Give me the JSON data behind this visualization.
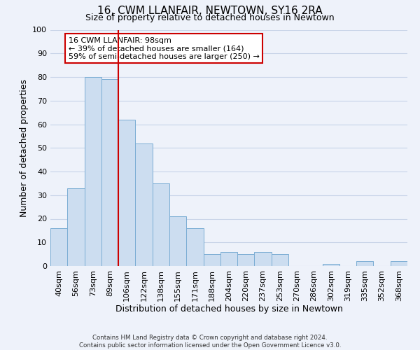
{
  "title": "16, CWM LLANFAIR, NEWTOWN, SY16 2RA",
  "subtitle": "Size of property relative to detached houses in Newtown",
  "xlabel": "Distribution of detached houses by size in Newtown",
  "ylabel": "Number of detached properties",
  "categories": [
    "40sqm",
    "56sqm",
    "73sqm",
    "89sqm",
    "106sqm",
    "122sqm",
    "138sqm",
    "155sqm",
    "171sqm",
    "188sqm",
    "204sqm",
    "220sqm",
    "237sqm",
    "253sqm",
    "270sqm",
    "286sqm",
    "302sqm",
    "319sqm",
    "335sqm",
    "352sqm",
    "368sqm"
  ],
  "values": [
    16,
    33,
    80,
    79,
    62,
    52,
    35,
    21,
    16,
    5,
    6,
    5,
    6,
    5,
    0,
    0,
    1,
    0,
    2,
    0,
    2
  ],
  "bar_color": "#ccddf0",
  "bar_edge_color": "#7aadd4",
  "vline_x_index": 3.5,
  "vline_color": "#cc0000",
  "annotation_text": "16 CWM LLANFAIR: 98sqm\n← 39% of detached houses are smaller (164)\n59% of semi-detached houses are larger (250) →",
  "annotation_box_color": "white",
  "annotation_box_edge_color": "#cc0000",
  "ylim": [
    0,
    100
  ],
  "yticks": [
    0,
    10,
    20,
    30,
    40,
    50,
    60,
    70,
    80,
    90,
    100
  ],
  "footer_line1": "Contains HM Land Registry data © Crown copyright and database right 2024.",
  "footer_line2": "Contains public sector information licensed under the Open Government Licence v3.0.",
  "background_color": "#eef2fa",
  "grid_color": "#c8d4e8",
  "title_fontsize": 11,
  "subtitle_fontsize": 9
}
